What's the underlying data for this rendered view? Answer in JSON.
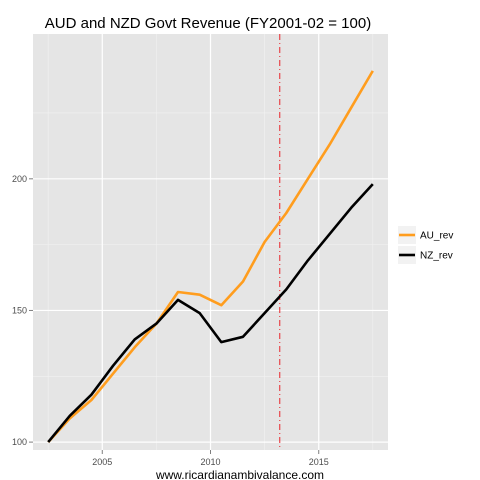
{
  "chart_data": {
    "type": "line",
    "title": "AUD and NZD Govt Revenue (FY2001-02 = 100)",
    "xlabel": "www.ricardianambivalance.com",
    "ylabel": "",
    "x": [
      2002.5,
      2003.5,
      2004.5,
      2005.5,
      2006.5,
      2007.5,
      2008.5,
      2009.5,
      2010.5,
      2011.5,
      2012.5,
      2013.5,
      2014.5,
      2015.5,
      2016.5,
      2017.5
    ],
    "series": [
      {
        "name": "AU_rev",
        "color": "#ff9d1e",
        "values": [
          100,
          109,
          116,
          126,
          136,
          145,
          157,
          156,
          152,
          161,
          176,
          187,
          200,
          213,
          227,
          241
        ]
      },
      {
        "name": "NZ_rev",
        "color": "#000000",
        "values": [
          100,
          110,
          118,
          129,
          139,
          145,
          154,
          149,
          138,
          140,
          149,
          158,
          169,
          179,
          189,
          198
        ]
      }
    ],
    "xlim": [
      2001.8,
      2018.2
    ],
    "ylim": [
      97,
      255
    ],
    "xticks": [
      2005,
      2010,
      2015
    ],
    "yticks": [
      100,
      150,
      200
    ],
    "vline": {
      "x": 2013.2,
      "color": "#e8252b",
      "style": "dashdot"
    },
    "grid": true,
    "panel_color": "#e5e5e5",
    "legend": {
      "position": "right",
      "title": ""
    }
  }
}
